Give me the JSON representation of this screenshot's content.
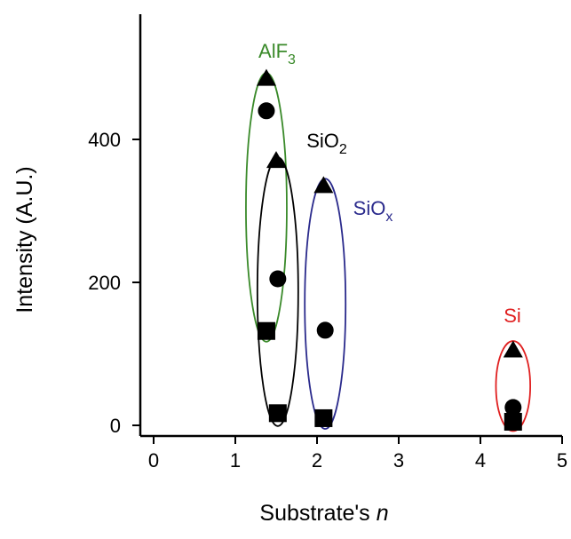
{
  "chart_data": {
    "type": "scatter",
    "xlabel": "Substrate's",
    "xlabel_italic": "n",
    "ylabel": "Intensity (A.U.)",
    "xlim": [
      0,
      5
    ],
    "ylim": [
      -20,
      580
    ],
    "xticks": [
      "0",
      "1",
      "2",
      "3",
      "4",
      "5"
    ],
    "xtick_values": [
      0,
      1,
      2,
      3,
      4,
      5
    ],
    "yticks": [
      "0",
      "200",
      "400"
    ],
    "ytick_values": [
      0,
      200,
      400
    ],
    "grid": false,
    "marker_color": "#000000",
    "series": [
      {
        "marker": "triangle",
        "points": [
          {
            "x": 1.38,
            "y": 485
          },
          {
            "x": 1.5,
            "y": 370
          },
          {
            "x": 2.08,
            "y": 335
          },
          {
            "x": 4.4,
            "y": 105
          }
        ]
      },
      {
        "marker": "circle",
        "points": [
          {
            "x": 1.38,
            "y": 440
          },
          {
            "x": 1.52,
            "y": 205
          },
          {
            "x": 2.1,
            "y": 133
          },
          {
            "x": 4.4,
            "y": 25
          }
        ]
      },
      {
        "marker": "square",
        "points": [
          {
            "x": 1.38,
            "y": 132
          },
          {
            "x": 1.52,
            "y": 17
          },
          {
            "x": 2.08,
            "y": 10
          },
          {
            "x": 4.4,
            "y": 5
          }
        ]
      }
    ],
    "groups": [
      {
        "label": "AlF",
        "sub": "3",
        "color": "#3a8a2a",
        "cx": 1.38,
        "cy": 305,
        "rx": 0.25,
        "ry": 188
      },
      {
        "label": "SiO",
        "sub": "2",
        "color": "#000000",
        "cx": 1.52,
        "cy": 187,
        "rx": 0.25,
        "ry": 188
      },
      {
        "label": "SiO",
        "sub": "x",
        "color": "#2a2a8c",
        "cx": 2.1,
        "cy": 170,
        "rx": 0.25,
        "ry": 175
      },
      {
        "label": "Si",
        "sub": "",
        "color": "#e02020",
        "cx": 4.4,
        "cy": 55,
        "rx": 0.21,
        "ry": 63
      }
    ]
  }
}
